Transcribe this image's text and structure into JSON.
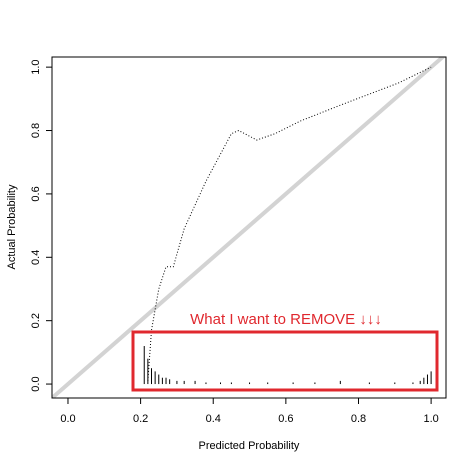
{
  "chart_data": {
    "type": "line",
    "x_label": "Predicted Probability",
    "y_label": "Actual Probability",
    "x": [
      0.22,
      0.23,
      0.25,
      0.27,
      0.29,
      0.32,
      0.38,
      0.45,
      0.47,
      0.52,
      0.57,
      0.64,
      0.75,
      0.91,
      1.0
    ],
    "values": [
      0.01,
      0.17,
      0.3,
      0.37,
      0.37,
      0.49,
      0.64,
      0.79,
      0.8,
      0.77,
      0.79,
      0.83,
      0.88,
      0.95,
      1.0
    ],
    "color": "#000000",
    "reference_line": {
      "intercept": 0,
      "slope": 1,
      "color": "#d3d3d3"
    },
    "spikes": {
      "x": [
        0.21,
        0.22,
        0.23,
        0.24,
        0.25,
        0.26,
        0.27,
        0.28,
        0.3,
        0.32,
        0.35,
        0.38,
        0.42,
        0.45,
        0.5,
        0.55,
        0.62,
        0.68,
        0.75,
        0.83,
        0.9,
        0.95,
        0.97,
        0.98,
        0.99,
        1.0
      ],
      "values": [
        0.12,
        0.08,
        0.05,
        0.04,
        0.03,
        0.02,
        0.02,
        0.015,
        0.01,
        0.01,
        0.01,
        0.005,
        0.005,
        0.005,
        0.005,
        0.005,
        0.005,
        0.005,
        0.01,
        0.005,
        0.005,
        0.005,
        0.01,
        0.02,
        0.03,
        0.04
      ]
    },
    "annotation": "What I want to REMOVE ↓↓↓",
    "xlim": [
      -0.044,
      1.041
    ],
    "ylim": [
      -0.044,
      1.032
    ],
    "xticks": [
      {
        "value": 0,
        "label": "0.0"
      },
      0.2,
      0.4,
      0.6,
      0.8,
      {
        "value": 1,
        "label": "1.0"
      }
    ],
    "yticks": [
      {
        "value": 0,
        "label": "0.0"
      },
      0.2,
      0.4,
      0.6,
      0.8,
      {
        "value": 1,
        "label": "1.0"
      }
    ]
  }
}
